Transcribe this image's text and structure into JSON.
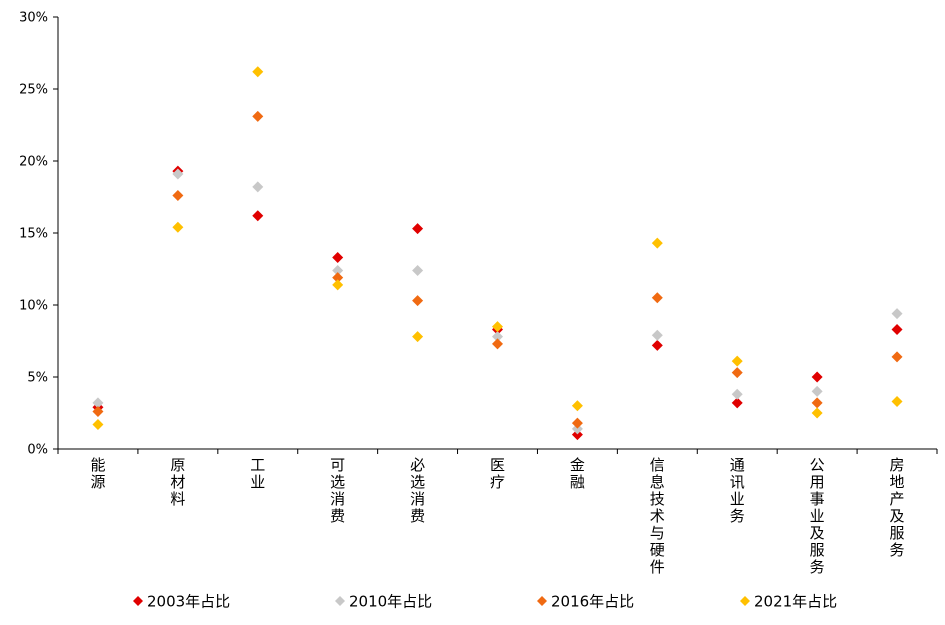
{
  "chart_data": {
    "type": "scatter",
    "categories": [
      "能源",
      "原材料",
      "工业",
      "可选消费",
      "必选消费",
      "医疗",
      "金融",
      "信息技术与硬件",
      "通讯业务",
      "公用事业及服务",
      "房地产及服务"
    ],
    "y_ticks": [
      "0%",
      "5%",
      "10%",
      "15%",
      "20%",
      "25%",
      "30%"
    ],
    "ylim": [
      0,
      30
    ],
    "y_unit": "%",
    "grid": false,
    "legend_position": "bottom",
    "marker": "diamond",
    "series": [
      {
        "name": "2003年占比",
        "color": "#e00000",
        "values": [
          2.9,
          19.3,
          16.2,
          13.3,
          15.3,
          8.3,
          1.0,
          7.2,
          3.2,
          5.0,
          8.3
        ]
      },
      {
        "name": "2010年占比",
        "color": "#c8c8c8",
        "values": [
          3.2,
          19.1,
          18.2,
          12.4,
          12.4,
          7.8,
          1.4,
          7.9,
          3.8,
          4.0,
          9.4
        ]
      },
      {
        "name": "2016年占比",
        "color": "#f06a12",
        "values": [
          2.6,
          17.6,
          23.1,
          11.9,
          10.3,
          7.3,
          1.8,
          10.5,
          5.3,
          3.2,
          6.4
        ]
      },
      {
        "name": "2021年占比",
        "color": "#ffc000",
        "values": [
          1.7,
          15.4,
          26.2,
          11.4,
          7.8,
          8.5,
          3.0,
          14.3,
          6.1,
          2.5,
          3.3
        ]
      }
    ]
  }
}
